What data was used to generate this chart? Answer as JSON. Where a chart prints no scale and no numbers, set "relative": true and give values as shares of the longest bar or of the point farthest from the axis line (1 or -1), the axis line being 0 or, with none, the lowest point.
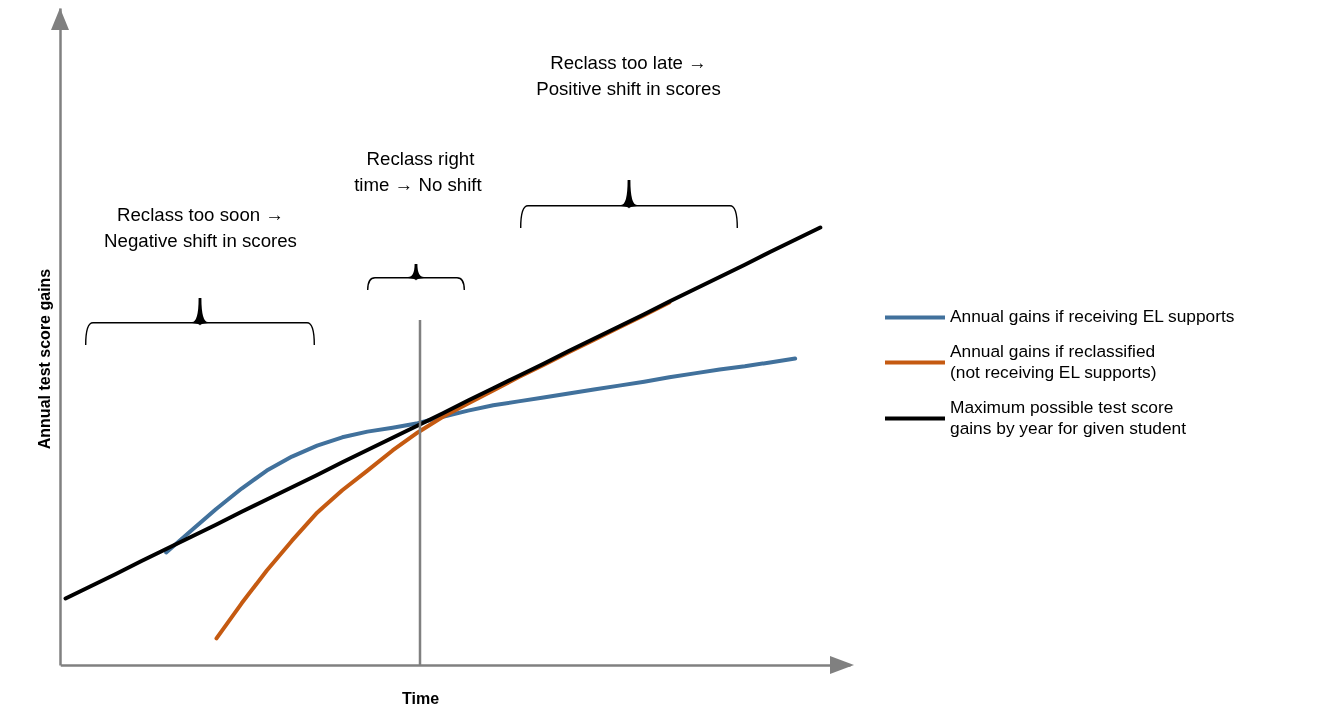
{
  "chart_data": {
    "type": "line",
    "relative": true,
    "xlabel": "Time",
    "ylabel": "Annual test score gains",
    "categories": [
      null,
      null,
      null,
      null,
      null,
      null,
      null,
      null,
      null,
      null,
      null,
      null,
      null,
      null,
      null,
      null,
      null,
      null,
      null,
      null,
      null,
      null,
      null,
      null,
      null,
      null,
      null,
      null,
      null,
      null,
      null
    ],
    "series": [
      {
        "name": "Annual gains if receiving EL supports",
        "color": "#41719c",
        "values": [
          null,
          null,
          null,
          null,
          0.258,
          0.308,
          0.358,
          0.404,
          0.445,
          0.477,
          0.502,
          0.521,
          0.534,
          0.543,
          0.553,
          0.568,
          0.582,
          0.594,
          0.603,
          0.612,
          0.621,
          0.63,
          0.639,
          0.648,
          0.658,
          0.667,
          0.676,
          0.683,
          0.692,
          0.701,
          null
        ]
      },
      {
        "name": "Annual gains if reclassified\n(not receiving EL supports)",
        "color": "#c55a11",
        "values": [
          null,
          null,
          null,
          null,
          null,
          null,
          0.062,
          0.142,
          0.217,
          0.285,
          0.349,
          0.4,
          0.445,
          0.491,
          0.532,
          0.568,
          0.598,
          0.628,
          0.658,
          0.686,
          0.715,
          0.743,
          0.772,
          0.8,
          0.829,
          null,
          null,
          null,
          null,
          null,
          null
        ]
      },
      {
        "name": "Maximum possible test score\ngains by year for given student",
        "color": "#000000",
        "values": [
          0.153,
          0.181,
          0.209,
          0.238,
          0.266,
          0.294,
          0.322,
          0.351,
          0.379,
          0.407,
          0.435,
          0.464,
          0.492,
          0.52,
          0.548,
          0.576,
          0.605,
          0.633,
          0.661,
          0.689,
          0.718,
          0.746,
          0.774,
          0.802,
          0.831,
          0.859,
          0.887,
          0.915,
          0.944,
          0.972,
          1
        ]
      }
    ],
    "annotations": [
      "Reclass too soon →\nNegative shift in scores",
      "Reclass right\ntime →  No shift",
      "Reclass too late →\nPositive shift in scores"
    ],
    "legend": "right",
    "marker": "none",
    "line_style": "solid",
    "tick_labels": false
  }
}
